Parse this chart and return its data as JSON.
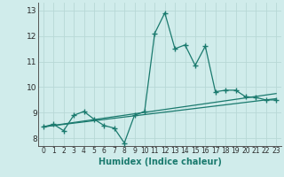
{
  "title": "",
  "xlabel": "Humidex (Indice chaleur)",
  "ylabel": "",
  "xlim": [
    -0.5,
    23.5
  ],
  "ylim": [
    7.7,
    13.3
  ],
  "xticks": [
    0,
    1,
    2,
    3,
    4,
    5,
    6,
    7,
    8,
    9,
    10,
    11,
    12,
    13,
    14,
    15,
    16,
    17,
    18,
    19,
    20,
    21,
    22,
    23
  ],
  "yticks": [
    8,
    9,
    10,
    11,
    12,
    13
  ],
  "bg_color": "#d0eceb",
  "grid_color": "#b8d8d6",
  "line_color": "#1a7a6e",
  "line1_x": [
    0,
    1,
    2,
    3,
    4,
    5,
    6,
    7,
    8,
    9,
    10,
    11,
    12,
    13,
    14,
    15,
    16,
    17,
    18,
    19,
    20,
    21,
    22,
    23
  ],
  "line1_y": [
    8.45,
    8.55,
    8.3,
    8.9,
    9.05,
    8.75,
    8.5,
    8.4,
    7.82,
    8.9,
    9.05,
    12.1,
    12.9,
    11.5,
    11.65,
    10.85,
    11.6,
    9.82,
    9.88,
    9.88,
    9.62,
    9.6,
    9.5,
    9.5
  ],
  "line2_x": [
    0,
    23
  ],
  "line2_y": [
    8.45,
    9.55
  ],
  "line3_x": [
    0,
    23
  ],
  "line3_y": [
    8.45,
    9.75
  ]
}
